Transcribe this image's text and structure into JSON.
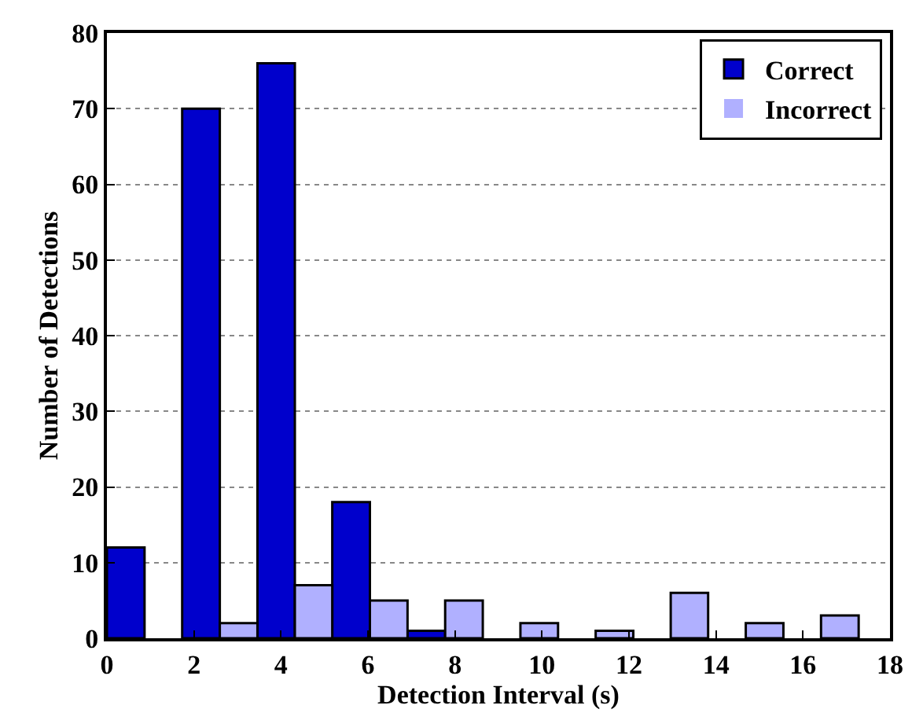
{
  "chart_data": {
    "type": "histogram",
    "xlabel": "Detection Interval (s)",
    "ylabel": "Number of Detections",
    "bins": [
      0,
      1.73,
      3.46,
      5.18,
      6.91,
      8.64,
      10.37,
      12.1,
      13.82,
      15.55,
      17.28
    ],
    "series": [
      {
        "name": "Correct",
        "color": "#0000cc",
        "values": [
          12,
          70,
          76,
          18,
          1,
          0,
          0,
          0,
          0,
          0
        ]
      },
      {
        "name": "Incorrect",
        "color": "#b0b0ff",
        "values": [
          0,
          2,
          7,
          5,
          5,
          2,
          1,
          6,
          2,
          3
        ]
      }
    ],
    "xlim": [
      0,
      18
    ],
    "xticks": [
      0,
      2,
      4,
      6,
      8,
      10,
      12,
      14,
      16,
      18
    ],
    "ylim": [
      0,
      80
    ],
    "yticks": [
      0,
      10,
      20,
      30,
      40,
      50,
      60,
      70,
      80
    ],
    "grid": "y",
    "legend": "top right"
  }
}
